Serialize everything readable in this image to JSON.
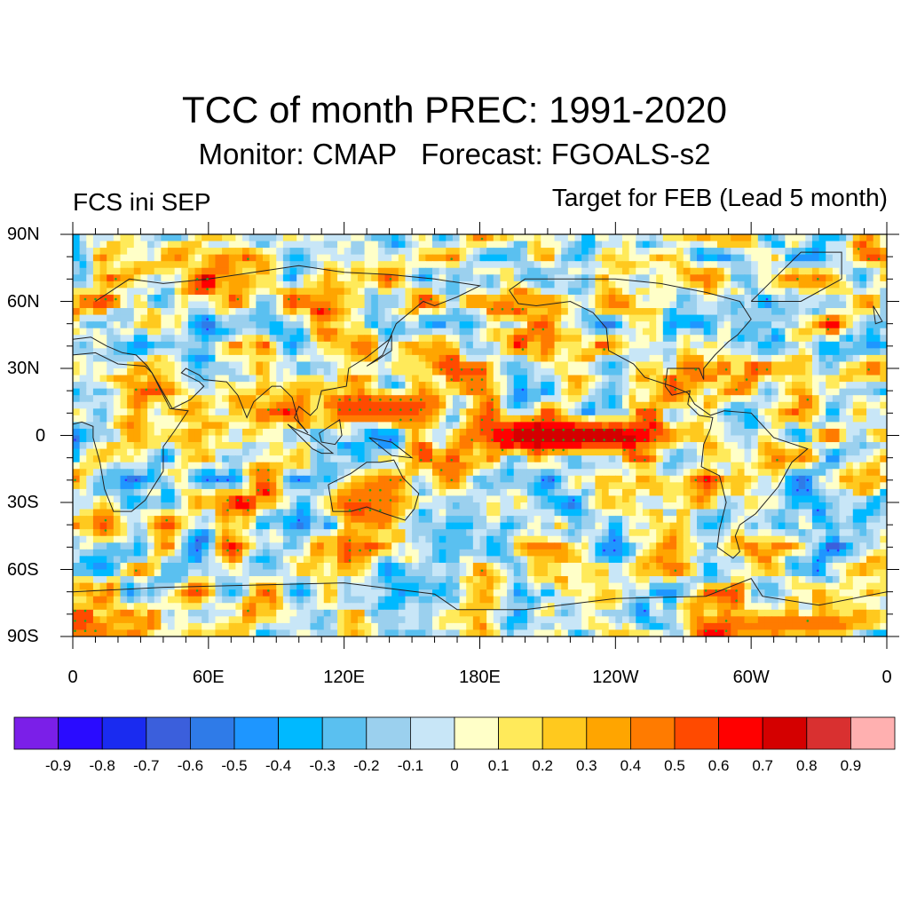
{
  "title": "TCC of month PREC: 1991-2020",
  "subtitle": "Monitor: CMAP   Forecast: FGOALS-s2",
  "left_label": "FCS ini SEP",
  "right_label": "Target for FEB (Lead 5 month)",
  "map": {
    "projection": "equirectangular",
    "lon_range": [
      0,
      360
    ],
    "lat_range": [
      -90,
      90
    ],
    "lat_ticks": [
      "90N",
      "60N",
      "30N",
      "0",
      "30S",
      "60S",
      "90S"
    ],
    "lon_ticks": [
      "0",
      "60E",
      "120E",
      "180E",
      "120W",
      "60W",
      "0"
    ],
    "stipple_colors": {
      "positive_significant": "#1faa1f",
      "negative_significant": "#3a2bff"
    },
    "features": [
      {
        "name": "Central/eastern equatorial Pacific positive band",
        "lon": [
          170,
          265
        ],
        "lat": [
          -8,
          8
        ],
        "tcc": 0.8
      },
      {
        "name": "Maritime continent / western Pacific positive area",
        "lon": [
          115,
          165
        ],
        "lat": [
          5,
          20
        ],
        "tcc": 0.6
      },
      {
        "name": "Australia positive area",
        "lon": [
          115,
          150
        ],
        "lat": [
          -40,
          -15
        ],
        "tcc": 0.5
      },
      {
        "name": "Antarctic coast (South Atlantic) positive area",
        "lon": [
          280,
          360
        ],
        "lat": [
          -90,
          -80
        ],
        "tcc": 0.5
      }
    ]
  },
  "colorbar": {
    "colors": [
      "#7b1fe8",
      "#2a0bff",
      "#1a2bf0",
      "#3b5fdc",
      "#2f7be8",
      "#1e96ff",
      "#00b9ff",
      "#5ac0f0",
      "#9bd0ee",
      "#c8e6f7",
      "#ffffc8",
      "#ffea5a",
      "#ffc91e",
      "#ffa500",
      "#ff7b00",
      "#ff4a00",
      "#ff0000",
      "#d40000",
      "#d93030",
      "#ffb0b0"
    ],
    "labels": [
      "-0.9",
      "-0.8",
      "-0.7",
      "-0.6",
      "-0.5",
      "-0.4",
      "-0.3",
      "-0.2",
      "-0.1",
      "0",
      "0.1",
      "0.2",
      "0.3",
      "0.4",
      "0.5",
      "0.6",
      "0.7",
      "0.8",
      "0.9"
    ]
  }
}
